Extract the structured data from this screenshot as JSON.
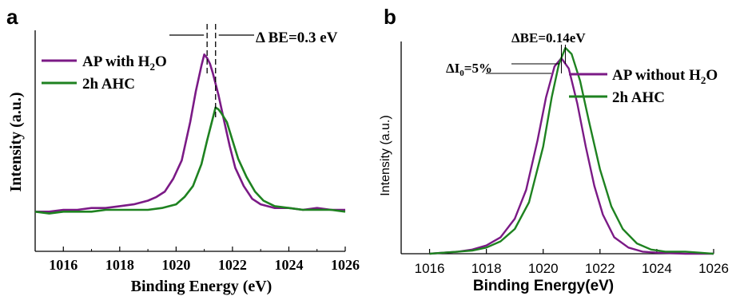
{
  "chart_data": [
    {
      "type": "line",
      "panel_label": "a",
      "xlabel": "Binding Energy (eV)",
      "ylabel": "Intensity (a.u.)",
      "xlim": [
        1015,
        1026
      ],
      "ylim": [
        0,
        1
      ],
      "xticks": [
        1016,
        1018,
        1020,
        1022,
        1024,
        1026
      ],
      "tick_labels": [
        "1016",
        "1018",
        "1020",
        "1022",
        "1024",
        "1026"
      ],
      "annotation": "Δ BE=0.3 eV",
      "annotation_lines_x": [
        1021.1,
        1021.4
      ],
      "legend_position": "top-left",
      "legend_lines": [
        {
          "main": "AP with H",
          "sub": "2",
          "tail": "O"
        },
        {
          "main": "2h AHC",
          "sub": "",
          "tail": ""
        }
      ],
      "series": [
        {
          "color": "#7b1a86",
          "x": [
            1015,
            1015.5,
            1016,
            1016.5,
            1017,
            1017.5,
            1018,
            1018.5,
            1019,
            1019.3,
            1019.6,
            1019.9,
            1020.2,
            1020.5,
            1020.7,
            1020.9,
            1021.0,
            1021.1,
            1021.2,
            1021.3,
            1021.5,
            1021.7,
            1021.9,
            1022.1,
            1022.4,
            1022.7,
            1023.0,
            1023.5,
            1024,
            1024.5,
            1025,
            1025.5,
            1026
          ],
          "y": [
            0.06,
            0.06,
            0.07,
            0.07,
            0.08,
            0.08,
            0.09,
            0.1,
            0.12,
            0.14,
            0.17,
            0.24,
            0.34,
            0.55,
            0.72,
            0.86,
            0.92,
            0.9,
            0.87,
            0.82,
            0.7,
            0.56,
            0.42,
            0.3,
            0.2,
            0.13,
            0.1,
            0.08,
            0.08,
            0.07,
            0.08,
            0.07,
            0.07
          ]
        },
        {
          "color": "#1e8220",
          "x": [
            1015,
            1015.5,
            1016,
            1016.5,
            1017,
            1017.5,
            1018,
            1018.5,
            1019,
            1019.5,
            1020.0,
            1020.3,
            1020.6,
            1020.9,
            1021.1,
            1021.3,
            1021.4,
            1021.5,
            1021.6,
            1021.8,
            1022.0,
            1022.2,
            1022.5,
            1022.8,
            1023.1,
            1023.5,
            1024,
            1024.5,
            1025,
            1025.5,
            1026
          ],
          "y": [
            0.06,
            0.05,
            0.06,
            0.06,
            0.06,
            0.07,
            0.07,
            0.07,
            0.07,
            0.08,
            0.1,
            0.14,
            0.2,
            0.32,
            0.45,
            0.57,
            0.63,
            0.62,
            0.6,
            0.55,
            0.45,
            0.35,
            0.25,
            0.17,
            0.12,
            0.09,
            0.08,
            0.07,
            0.07,
            0.07,
            0.06
          ]
        }
      ]
    },
    {
      "type": "line",
      "panel_label": "b",
      "xlabel": "Binding Energy(eV)",
      "ylabel": "Intensity (a.u.)",
      "xlim": [
        1015,
        1026
      ],
      "ylim": [
        0,
        1
      ],
      "xticks": [
        1016,
        1018,
        1020,
        1022,
        1024,
        1026
      ],
      "tick_labels": [
        "1016",
        "1018",
        "1020",
        "1022",
        "1024",
        "1026"
      ],
      "annotation_be": "ΔBE=0.14eV",
      "annotation_i0": {
        "main": "ΔI",
        "sub": "0",
        "tail": "=5%"
      },
      "annotation_lines_x": [
        1020.64,
        1020.78
      ],
      "legend_position": "top-right",
      "legend_lines": [
        {
          "main": "AP without H",
          "sub": "2",
          "tail": "O"
        },
        {
          "main": "2h AHC",
          "sub": "",
          "tail": ""
        }
      ],
      "series": [
        {
          "color": "#7b1a86",
          "x": [
            1016,
            1016.5,
            1017,
            1017.5,
            1018,
            1018.5,
            1019,
            1019.4,
            1019.8,
            1020.1,
            1020.4,
            1020.64,
            1020.9,
            1021.2,
            1021.5,
            1021.8,
            1022.1,
            1022.5,
            1023,
            1023.5,
            1024,
            1025,
            1026
          ],
          "y": [
            0.0,
            0.005,
            0.01,
            0.02,
            0.04,
            0.08,
            0.17,
            0.31,
            0.55,
            0.76,
            0.91,
            0.95,
            0.9,
            0.73,
            0.52,
            0.33,
            0.19,
            0.08,
            0.03,
            0.01,
            0.005,
            0.0,
            0.0
          ]
        },
        {
          "color": "#1e8220",
          "x": [
            1016,
            1016.5,
            1017,
            1017.5,
            1018,
            1018.5,
            1019,
            1019.5,
            1020,
            1020.3,
            1020.55,
            1020.78,
            1021.0,
            1021.3,
            1021.6,
            1022.0,
            1022.4,
            1022.8,
            1023.3,
            1023.8,
            1024.3,
            1025,
            1025.5,
            1026
          ],
          "y": [
            0.0,
            0.005,
            0.01,
            0.015,
            0.03,
            0.06,
            0.12,
            0.25,
            0.52,
            0.76,
            0.92,
            1.0,
            0.97,
            0.84,
            0.65,
            0.41,
            0.23,
            0.12,
            0.05,
            0.02,
            0.01,
            0.01,
            0.005,
            0.0
          ]
        }
      ]
    }
  ]
}
